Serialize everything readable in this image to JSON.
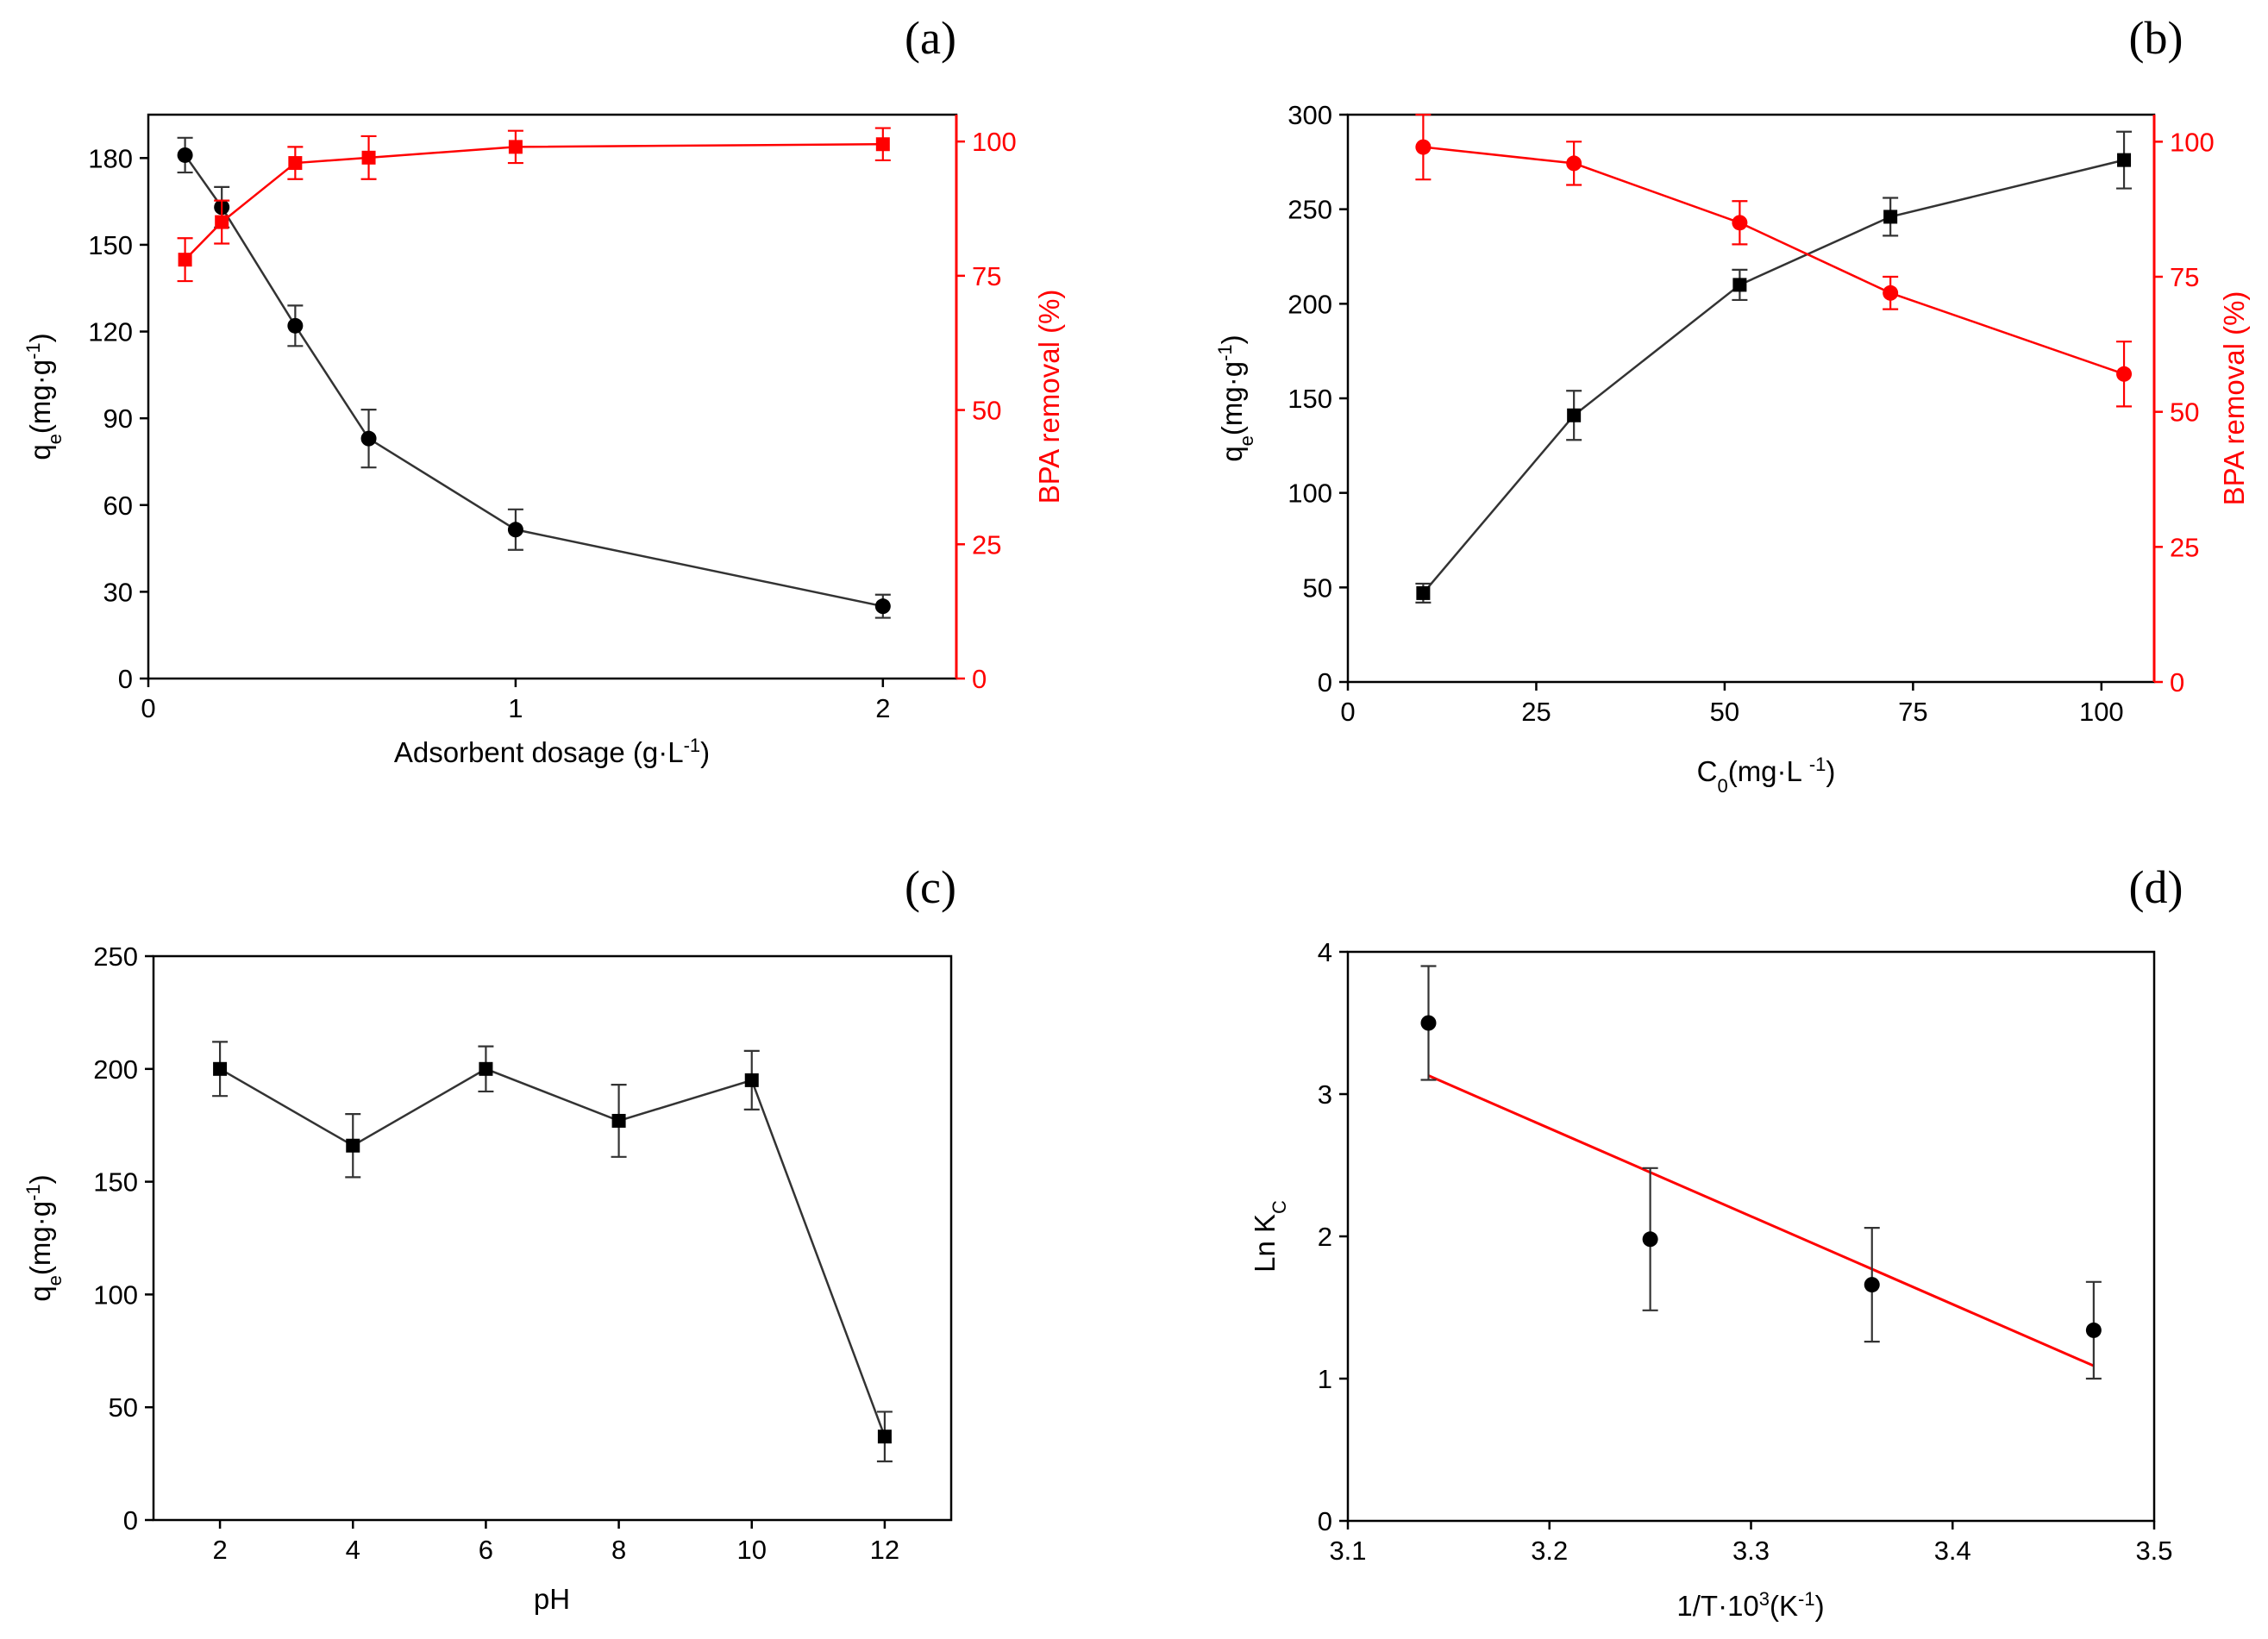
{
  "colors": {
    "primary": "#000000",
    "secondary": "#ff0000"
  },
  "chart_data": [
    {
      "panel": "(a)",
      "type": "line",
      "xlabel": "Adsorbent dosage (g·L-1)",
      "ylabel_left": "qe(mg·g-1)",
      "ylabel_right": "BPA removal (%)",
      "xlim": [
        0,
        2.2
      ],
      "ylim_left": [
        0,
        195
      ],
      "ylim_right": [
        0,
        105
      ],
      "x_ticks": [
        0,
        1,
        2
      ],
      "y_ticks_left": [
        0,
        30,
        60,
        90,
        120,
        150,
        180
      ],
      "y_ticks_right": [
        0,
        25,
        50,
        75,
        100
      ],
      "series": [
        {
          "name": "qe",
          "axis": "left",
          "marker": "circle",
          "color": "#000000",
          "x": [
            0.1,
            0.2,
            0.4,
            0.6,
            1.0,
            2.0
          ],
          "values": [
            181,
            163,
            122,
            83,
            51.5,
            25
          ],
          "errors": [
            6,
            7,
            7,
            10,
            7,
            4
          ]
        },
        {
          "name": "BPA removal",
          "axis": "right",
          "marker": "square",
          "color": "#ff0000",
          "x": [
            0.1,
            0.2,
            0.4,
            0.6,
            1.0,
            2.0
          ],
          "values": [
            78,
            85,
            96,
            97,
            99,
            99.5
          ],
          "errors": [
            4,
            4,
            3,
            4,
            3,
            3
          ]
        }
      ]
    },
    {
      "panel": "(b)",
      "type": "line",
      "xlabel": "C0(mg·L -1)",
      "ylabel_left": "qe(mg·g-1)",
      "ylabel_right": "BPA removal (%)",
      "xlim": [
        0,
        107
      ],
      "ylim_left": [
        0,
        300
      ],
      "ylim_right": [
        0,
        105
      ],
      "x_ticks": [
        0,
        25,
        50,
        75,
        100
      ],
      "y_ticks_left": [
        0,
        50,
        100,
        150,
        200,
        250,
        300
      ],
      "y_ticks_right": [
        0,
        25,
        50,
        75,
        100
      ],
      "series": [
        {
          "name": "qe",
          "axis": "left",
          "marker": "square",
          "color": "#000000",
          "x": [
            10,
            30,
            52,
            72,
            103
          ],
          "values": [
            47,
            141,
            210,
            246,
            276
          ],
          "errors": [
            5,
            13,
            8,
            10,
            15
          ]
        },
        {
          "name": "BPA removal",
          "axis": "right",
          "marker": "circle",
          "color": "#ff0000",
          "x": [
            10,
            30,
            52,
            72,
            103
          ],
          "values": [
            99,
            96,
            85,
            72,
            57
          ],
          "errors": [
            6,
            4,
            4,
            3,
            6
          ]
        }
      ]
    },
    {
      "panel": "(c)",
      "type": "line",
      "xlabel": "pH",
      "ylabel_left": "qe(mg·g-1)",
      "xlim": [
        1,
        13
      ],
      "ylim_left": [
        0,
        250
      ],
      "x_ticks": [
        2,
        4,
        6,
        8,
        10,
        12
      ],
      "y_ticks_left": [
        0,
        50,
        100,
        150,
        200,
        250
      ],
      "series": [
        {
          "name": "qe",
          "axis": "left",
          "marker": "square",
          "color": "#000000",
          "x": [
            2,
            4,
            6,
            8,
            10,
            12
          ],
          "values": [
            200,
            166,
            200,
            177,
            195,
            37
          ],
          "errors": [
            12,
            14,
            10,
            16,
            13,
            11
          ]
        }
      ]
    },
    {
      "panel": "(d)",
      "type": "scatter",
      "xlabel": "1/T·103(K-1)",
      "ylabel_left": "Ln KC",
      "xlim": [
        3.1,
        3.5
      ],
      "ylim_left": [
        0,
        4
      ],
      "x_ticks": [
        3.1,
        3.2,
        3.3,
        3.4,
        3.5
      ],
      "y_ticks_left": [
        0,
        1,
        2,
        3,
        4
      ],
      "series": [
        {
          "name": "Ln KC",
          "axis": "left",
          "marker": "circle",
          "color": "#000000",
          "x": [
            3.14,
            3.25,
            3.36,
            3.47
          ],
          "values": [
            3.5,
            1.98,
            1.66,
            1.34
          ],
          "errors": [
            0.4,
            0.5,
            0.4,
            0.34
          ]
        }
      ],
      "fit_line": {
        "name": "linear fit",
        "color": "#ff0000",
        "x": [
          3.14,
          3.47
        ],
        "values": [
          3.13,
          1.09
        ]
      }
    }
  ]
}
